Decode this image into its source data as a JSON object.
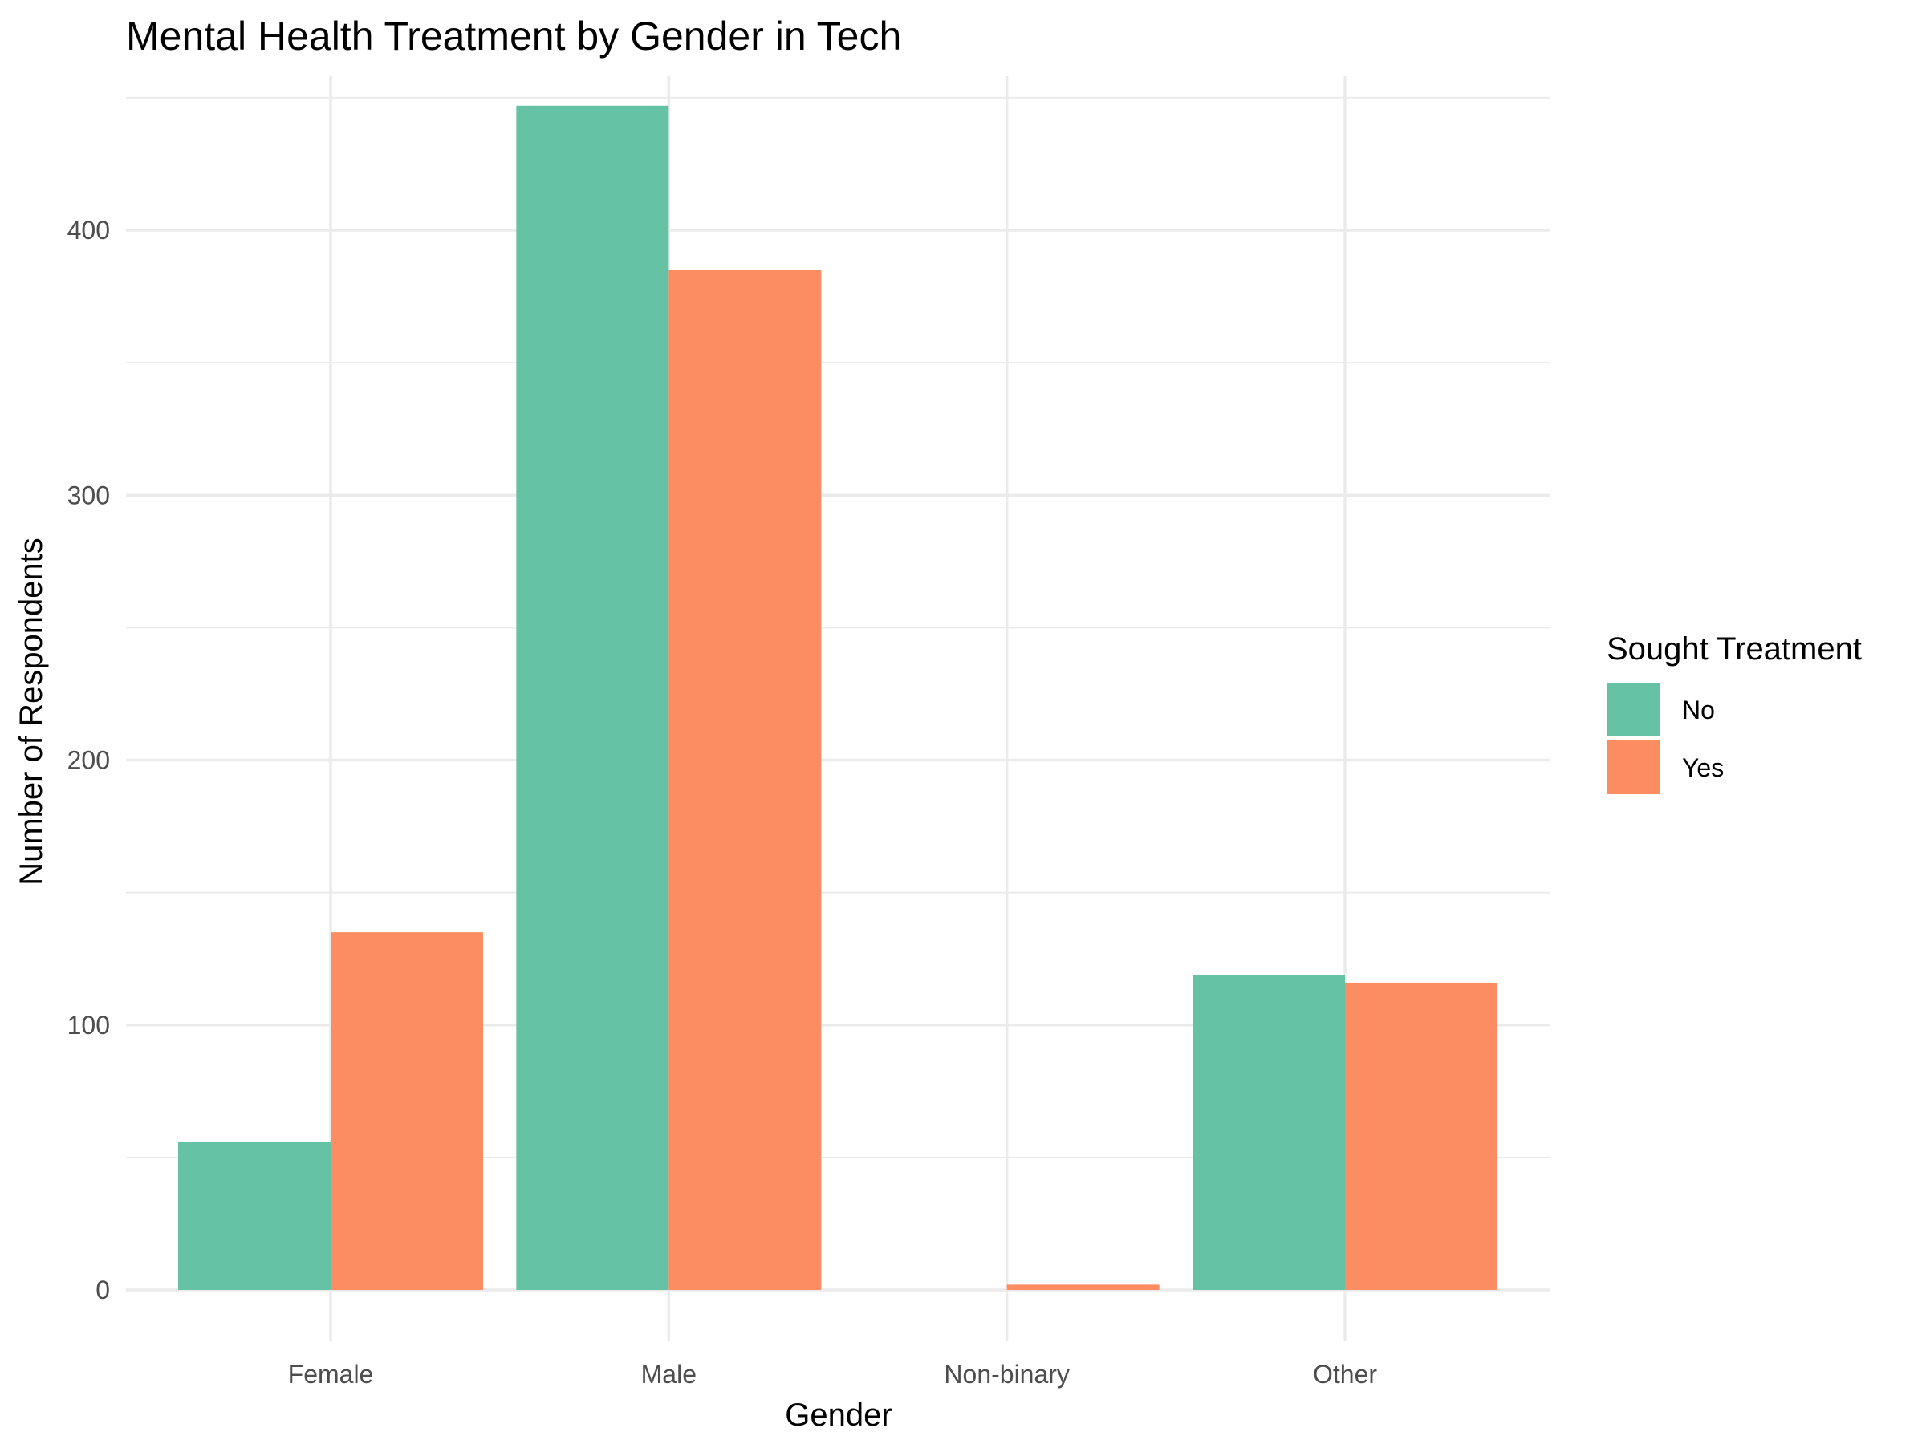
{
  "chart_data": {
    "type": "bar",
    "title": "Mental Health Treatment by Gender in Tech",
    "xlabel": "Gender",
    "ylabel": "Number of Respondents",
    "categories": [
      "Female",
      "Male",
      "Non-binary",
      "Other"
    ],
    "series": [
      {
        "name": "No",
        "color": "#66c2a5",
        "values": [
          56,
          447,
          0,
          119
        ]
      },
      {
        "name": "Yes",
        "color": "#fc8d62",
        "values": [
          135,
          385,
          2,
          116
        ]
      }
    ],
    "ylim": [
      0,
      460
    ],
    "yticks": [
      0,
      100,
      200,
      300,
      400
    ],
    "grid": true,
    "legend": {
      "title": "Sought Treatment",
      "placement": "right"
    }
  }
}
